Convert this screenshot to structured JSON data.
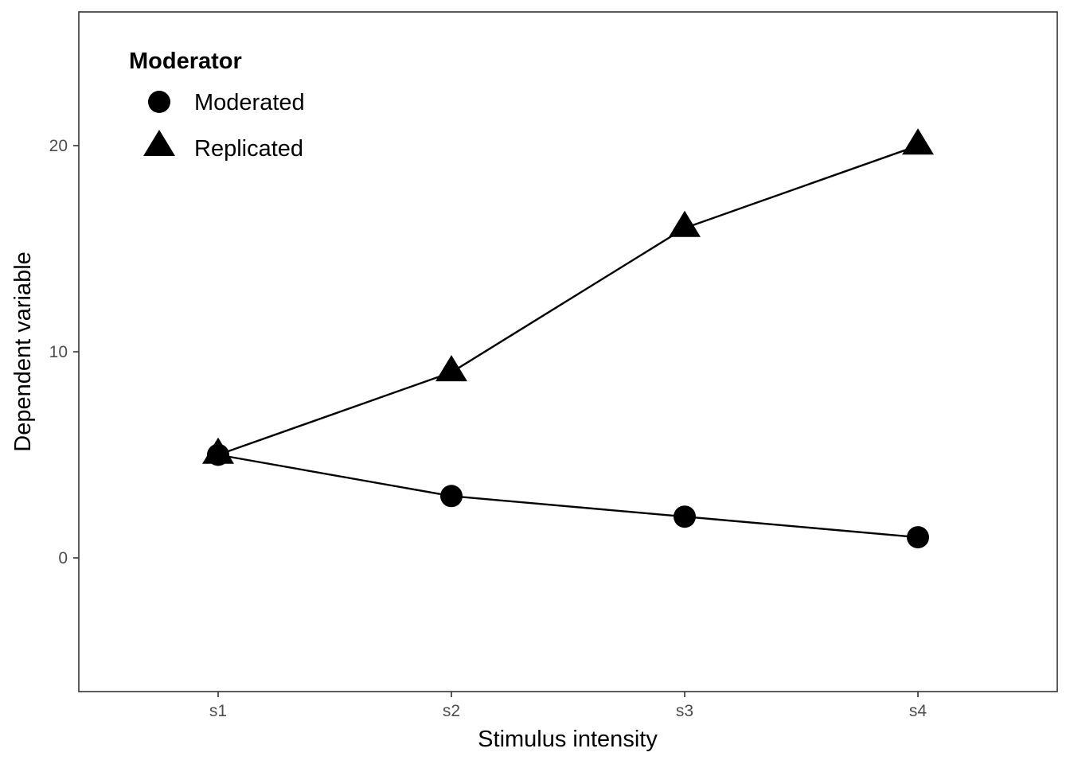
{
  "chart_data": {
    "type": "line",
    "title": "",
    "xlabel": "Stimulus intensity",
    "ylabel": "Dependent variable",
    "categories": [
      "s1",
      "s2",
      "s3",
      "s4"
    ],
    "ylim": [
      -6.5,
      26.5
    ],
    "yticks": [
      0,
      10,
      20
    ],
    "grid": false,
    "legend": {
      "title": "Moderator",
      "position": "top-left"
    },
    "series": [
      {
        "name": "Moderated",
        "marker": "circle",
        "values": [
          5,
          3,
          2,
          1
        ]
      },
      {
        "name": "Replicated",
        "marker": "triangle",
        "values": [
          5,
          9,
          16,
          20
        ]
      }
    ],
    "colors": {
      "line": "#000000",
      "marker": "#000000",
      "panel_border": "#333333",
      "tick_text": "#4d4d4d"
    }
  }
}
